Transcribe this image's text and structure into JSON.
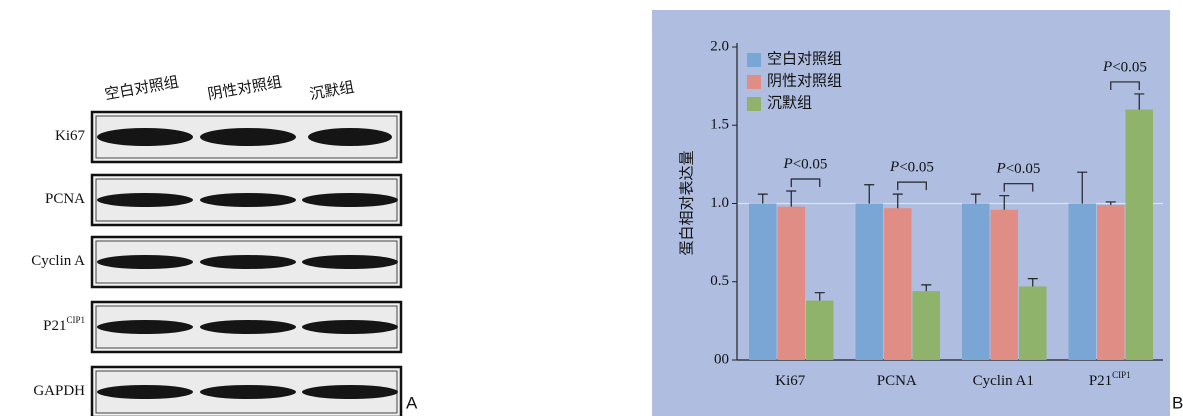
{
  "panel_a": {
    "panel_label": "A",
    "lanes": [
      "空白对照组",
      "阴性对照组",
      "沉默组"
    ],
    "blots": [
      {
        "label": "Ki67"
      },
      {
        "label": "PCNA"
      },
      {
        "label": "Cyclin A"
      },
      {
        "label": "P21",
        "sup": "CIP1"
      },
      {
        "label": "GAPDH"
      }
    ]
  },
  "chart_data": {
    "type": "bar",
    "panel_label": "B",
    "ylabel": "蛋白相对表达量",
    "categories": [
      "Ki67",
      "PCNA",
      "Cyclin A1",
      "P21"
    ],
    "category_superscripts": [
      null,
      null,
      null,
      "CIP1"
    ],
    "series": [
      {
        "name": "空白对照组",
        "color": "#7aa6d6",
        "values": [
          1.0,
          1.0,
          1.0,
          1.0
        ],
        "errors": [
          0.06,
          0.12,
          0.06,
          0.2
        ]
      },
      {
        "name": "阴性对照组",
        "color": "#e08d86",
        "values": [
          0.98,
          0.97,
          0.96,
          0.99
        ],
        "errors": [
          0.1,
          0.09,
          0.09,
          0.02
        ]
      },
      {
        "name": "沉默组",
        "color": "#8fb36a",
        "values": [
          0.38,
          0.44,
          0.47,
          1.6
        ],
        "errors": [
          0.05,
          0.04,
          0.05,
          0.1
        ]
      }
    ],
    "ylim": [
      0,
      2
    ],
    "yticks": [
      {
        "value": 0,
        "label": "00"
      },
      0.5,
      {
        "value": 1,
        "label": "1.0"
      },
      1.5,
      {
        "value": 2,
        "label": "2.0"
      }
    ],
    "reference_line": 1,
    "annotations": [
      {
        "text": "P<0.05",
        "category": 0
      },
      {
        "text": "P<0.05",
        "category": 1
      },
      {
        "text": "P<0.05",
        "category": 2
      },
      {
        "text": "P<0.05",
        "category": 3
      }
    ],
    "legend": "upper left"
  }
}
